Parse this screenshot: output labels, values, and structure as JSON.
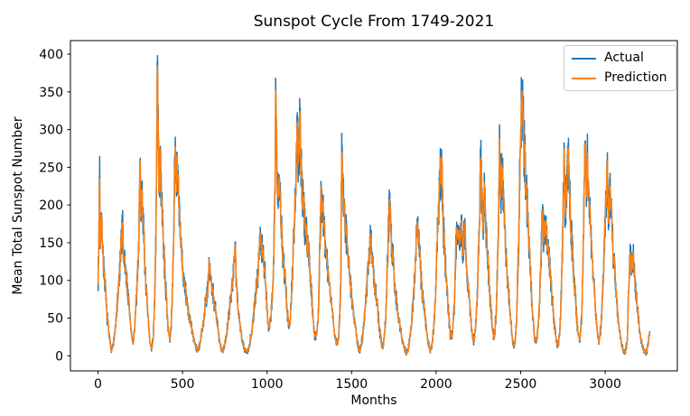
{
  "chart_data": {
    "type": "line",
    "title": "Sunspot Cycle From 1749-2021",
    "xlabel": "Months",
    "ylabel": "Mean Total Sunspot Number",
    "xlim": [
      -163,
      3427
    ],
    "ylim": [
      -20,
      418
    ],
    "xticks": [
      0,
      500,
      1000,
      1500,
      2000,
      2500,
      3000
    ],
    "yticks": [
      0,
      50,
      100,
      150,
      200,
      250,
      300,
      350,
      400
    ],
    "grid": false,
    "background": "#ffffff",
    "axis_color": "#000000",
    "legend": {
      "position": "upper right",
      "entries": [
        {
          "label": "Actual",
          "color": "#1f77b4"
        },
        {
          "label": "Prediction",
          "color": "#ff7f0e"
        }
      ]
    },
    "x_months_range": [
      0,
      3264
    ],
    "series": [
      {
        "name": "Actual",
        "color": "#1f77b4",
        "note": "monthly mean total sunspot number; values below are sampled envelope keypoints [month, value] read from the plot",
        "keypoints": [
          [
            0,
            97
          ],
          [
            4,
            130
          ],
          [
            10,
            264
          ],
          [
            12,
            142
          ],
          [
            17,
            185
          ],
          [
            24,
            170
          ],
          [
            32,
            125
          ],
          [
            42,
            90
          ],
          [
            55,
            50
          ],
          [
            68,
            22
          ],
          [
            78,
            9
          ],
          [
            90,
            14
          ],
          [
            104,
            38
          ],
          [
            118,
            78
          ],
          [
            132,
            125
          ],
          [
            145,
            178
          ],
          [
            151,
            138
          ],
          [
            158,
            125
          ],
          [
            170,
            100
          ],
          [
            185,
            62
          ],
          [
            198,
            28
          ],
          [
            207,
            16
          ],
          [
            218,
            40
          ],
          [
            230,
            85
          ],
          [
            240,
            150
          ],
          [
            250,
            262
          ],
          [
            255,
            190
          ],
          [
            261,
            232
          ],
          [
            268,
            170
          ],
          [
            278,
            118
          ],
          [
            292,
            62
          ],
          [
            306,
            20
          ],
          [
            318,
            8
          ],
          [
            328,
            30
          ],
          [
            338,
            95
          ],
          [
            346,
            225
          ],
          [
            352,
            398
          ],
          [
            357,
            275
          ],
          [
            363,
            222
          ],
          [
            370,
            258
          ],
          [
            378,
            195
          ],
          [
            390,
            138
          ],
          [
            403,
            80
          ],
          [
            415,
            38
          ],
          [
            425,
            18
          ],
          [
            434,
            42
          ],
          [
            446,
            140
          ],
          [
            452,
            230
          ],
          [
            457,
            290
          ],
          [
            463,
            235
          ],
          [
            469,
            262
          ],
          [
            477,
            205
          ],
          [
            488,
            155
          ],
          [
            500,
            118
          ],
          [
            515,
            88
          ],
          [
            532,
            62
          ],
          [
            550,
            40
          ],
          [
            566,
            22
          ],
          [
            580,
            12
          ],
          [
            592,
            7
          ],
          [
            604,
            16
          ],
          [
            620,
            40
          ],
          [
            636,
            70
          ],
          [
            650,
            92
          ],
          [
            658,
            125
          ],
          [
            665,
            105
          ],
          [
            672,
            95
          ],
          [
            684,
            78
          ],
          [
            697,
            58
          ],
          [
            710,
            35
          ],
          [
            722,
            16
          ],
          [
            733,
            6
          ],
          [
            745,
            10
          ],
          [
            758,
            26
          ],
          [
            772,
            52
          ],
          [
            786,
            80
          ],
          [
            797,
            100
          ],
          [
            806,
            125
          ],
          [
            812,
            150
          ],
          [
            818,
            95
          ],
          [
            826,
            70
          ],
          [
            838,
            45
          ],
          [
            852,
            20
          ],
          [
            868,
            9
          ],
          [
            882,
            5
          ],
          [
            896,
            14
          ],
          [
            910,
            34
          ],
          [
            925,
            62
          ],
          [
            940,
            95
          ],
          [
            952,
            130
          ],
          [
            963,
            162
          ],
          [
            972,
            142
          ],
          [
            982,
            125
          ],
          [
            993,
            92
          ],
          [
            1003,
            50
          ],
          [
            1012,
            36
          ],
          [
            1022,
            52
          ],
          [
            1034,
            95
          ],
          [
            1044,
            175
          ],
          [
            1052,
            345
          ],
          [
            1058,
            260
          ],
          [
            1065,
            215
          ],
          [
            1073,
            235
          ],
          [
            1082,
            180
          ],
          [
            1092,
            138
          ],
          [
            1104,
            110
          ],
          [
            1116,
            70
          ],
          [
            1127,
            38
          ],
          [
            1137,
            48
          ],
          [
            1150,
            110
          ],
          [
            1163,
            185
          ],
          [
            1172,
            240
          ],
          [
            1178,
            300
          ],
          [
            1186,
            252
          ],
          [
            1195,
            306
          ],
          [
            1204,
            235
          ],
          [
            1215,
            200
          ],
          [
            1226,
            168
          ],
          [
            1243,
            148
          ],
          [
            1256,
            108
          ],
          [
            1268,
            62
          ],
          [
            1280,
            30
          ],
          [
            1290,
            26
          ],
          [
            1302,
            45
          ],
          [
            1312,
            140
          ],
          [
            1320,
            218
          ],
          [
            1330,
            195
          ],
          [
            1341,
            162
          ],
          [
            1352,
            130
          ],
          [
            1363,
            110
          ],
          [
            1375,
            82
          ],
          [
            1390,
            50
          ],
          [
            1403,
            25
          ],
          [
            1414,
            14
          ],
          [
            1424,
            24
          ],
          [
            1436,
            90
          ],
          [
            1442,
            295
          ],
          [
            1448,
            225
          ],
          [
            1455,
            195
          ],
          [
            1466,
            172
          ],
          [
            1476,
            138
          ],
          [
            1490,
            102
          ],
          [
            1505,
            70
          ],
          [
            1520,
            42
          ],
          [
            1534,
            18
          ],
          [
            1545,
            6
          ],
          [
            1556,
            12
          ],
          [
            1570,
            35
          ],
          [
            1584,
            75
          ],
          [
            1598,
            120
          ],
          [
            1610,
            158
          ],
          [
            1622,
            132
          ],
          [
            1635,
            98
          ],
          [
            1650,
            68
          ],
          [
            1664,
            38
          ],
          [
            1676,
            18
          ],
          [
            1687,
            12
          ],
          [
            1700,
            42
          ],
          [
            1712,
            120
          ],
          [
            1726,
            216
          ],
          [
            1733,
            160
          ],
          [
            1742,
            138
          ],
          [
            1752,
            105
          ],
          [
            1764,
            75
          ],
          [
            1780,
            48
          ],
          [
            1797,
            25
          ],
          [
            1812,
            10
          ],
          [
            1825,
            4
          ],
          [
            1838,
            12
          ],
          [
            1852,
            35
          ],
          [
            1866,
            75
          ],
          [
            1878,
            125
          ],
          [
            1890,
            180
          ],
          [
            1900,
            148
          ],
          [
            1910,
            108
          ],
          [
            1922,
            75
          ],
          [
            1936,
            48
          ],
          [
            1950,
            22
          ],
          [
            1963,
            7
          ],
          [
            1975,
            14
          ],
          [
            1988,
            42
          ],
          [
            2000,
            105
          ],
          [
            2012,
            185
          ],
          [
            2022,
            230
          ],
          [
            2033,
            257
          ],
          [
            2040,
            185
          ],
          [
            2050,
            142
          ],
          [
            2062,
            100
          ],
          [
            2074,
            55
          ],
          [
            2086,
            24
          ],
          [
            2097,
            30
          ],
          [
            2108,
            70
          ],
          [
            2118,
            150
          ],
          [
            2130,
            165
          ],
          [
            2140,
            140
          ],
          [
            2150,
            170
          ],
          [
            2160,
            140
          ],
          [
            2170,
            182
          ],
          [
            2180,
            120
          ],
          [
            2196,
            78
          ],
          [
            2208,
            38
          ],
          [
            2220,
            18
          ],
          [
            2232,
            32
          ],
          [
            2245,
            85
          ],
          [
            2255,
            170
          ],
          [
            2262,
            275
          ],
          [
            2270,
            205
          ],
          [
            2278,
            172
          ],
          [
            2286,
            228
          ],
          [
            2295,
            168
          ],
          [
            2308,
            120
          ],
          [
            2320,
            75
          ],
          [
            2332,
            38
          ],
          [
            2343,
            22
          ],
          [
            2355,
            55
          ],
          [
            2366,
            140
          ],
          [
            2376,
            285
          ],
          [
            2383,
            215
          ],
          [
            2391,
            248
          ],
          [
            2400,
            190
          ],
          [
            2412,
            142
          ],
          [
            2425,
            95
          ],
          [
            2438,
            55
          ],
          [
            2452,
            20
          ],
          [
            2464,
            12
          ],
          [
            2476,
            45
          ],
          [
            2488,
            150
          ],
          [
            2498,
            275
          ],
          [
            2505,
            330
          ],
          [
            2510,
            359
          ],
          [
            2517,
            300
          ],
          [
            2524,
            262
          ],
          [
            2534,
            218
          ],
          [
            2546,
            165
          ],
          [
            2558,
            108
          ],
          [
            2570,
            58
          ],
          [
            2582,
            24
          ],
          [
            2594,
            18
          ],
          [
            2606,
            48
          ],
          [
            2618,
            110
          ],
          [
            2628,
            193
          ],
          [
            2638,
            152
          ],
          [
            2650,
            178
          ],
          [
            2662,
            145
          ],
          [
            2675,
            108
          ],
          [
            2688,
            72
          ],
          [
            2700,
            42
          ],
          [
            2712,
            18
          ],
          [
            2724,
            14
          ],
          [
            2736,
            48
          ],
          [
            2748,
            150
          ],
          [
            2756,
            256
          ],
          [
            2764,
            195
          ],
          [
            2773,
            225
          ],
          [
            2782,
            265
          ],
          [
            2790,
            215
          ],
          [
            2800,
            162
          ],
          [
            2812,
            118
          ],
          [
            2825,
            72
          ],
          [
            2838,
            32
          ],
          [
            2850,
            18
          ],
          [
            2862,
            55
          ],
          [
            2872,
            160
          ],
          [
            2880,
            284
          ],
          [
            2888,
            225
          ],
          [
            2896,
            262
          ],
          [
            2905,
            210
          ],
          [
            2915,
            158
          ],
          [
            2928,
            112
          ],
          [
            2940,
            72
          ],
          [
            2952,
            35
          ],
          [
            2963,
            16
          ],
          [
            2976,
            40
          ],
          [
            2990,
            110
          ],
          [
            3002,
            190
          ],
          [
            3012,
            244
          ],
          [
            3020,
            185
          ],
          [
            3030,
            222
          ],
          [
            3040,
            170
          ],
          [
            3052,
            125
          ],
          [
            3065,
            80
          ],
          [
            3078,
            45
          ],
          [
            3092,
            22
          ],
          [
            3105,
            9
          ],
          [
            3118,
            3
          ],
          [
            3130,
            18
          ],
          [
            3140,
            90
          ],
          [
            3148,
            148
          ],
          [
            3156,
            115
          ],
          [
            3166,
            132
          ],
          [
            3176,
            105
          ],
          [
            3188,
            70
          ],
          [
            3200,
            42
          ],
          [
            3212,
            22
          ],
          [
            3225,
            10
          ],
          [
            3238,
            3
          ],
          [
            3248,
            7
          ],
          [
            3256,
            20
          ],
          [
            3264,
            33
          ]
        ]
      },
      {
        "name": "Prediction",
        "color": "#ff7f0e",
        "derived_from": "Actual",
        "method": "weighted 3-month centered moving average",
        "weights": [
          0.25,
          0.5,
          0.25
        ]
      }
    ],
    "synthesis": {
      "noise_seed": 7,
      "rel_noise": 0.3,
      "abs_noise": 8,
      "step_months": 1
    }
  }
}
